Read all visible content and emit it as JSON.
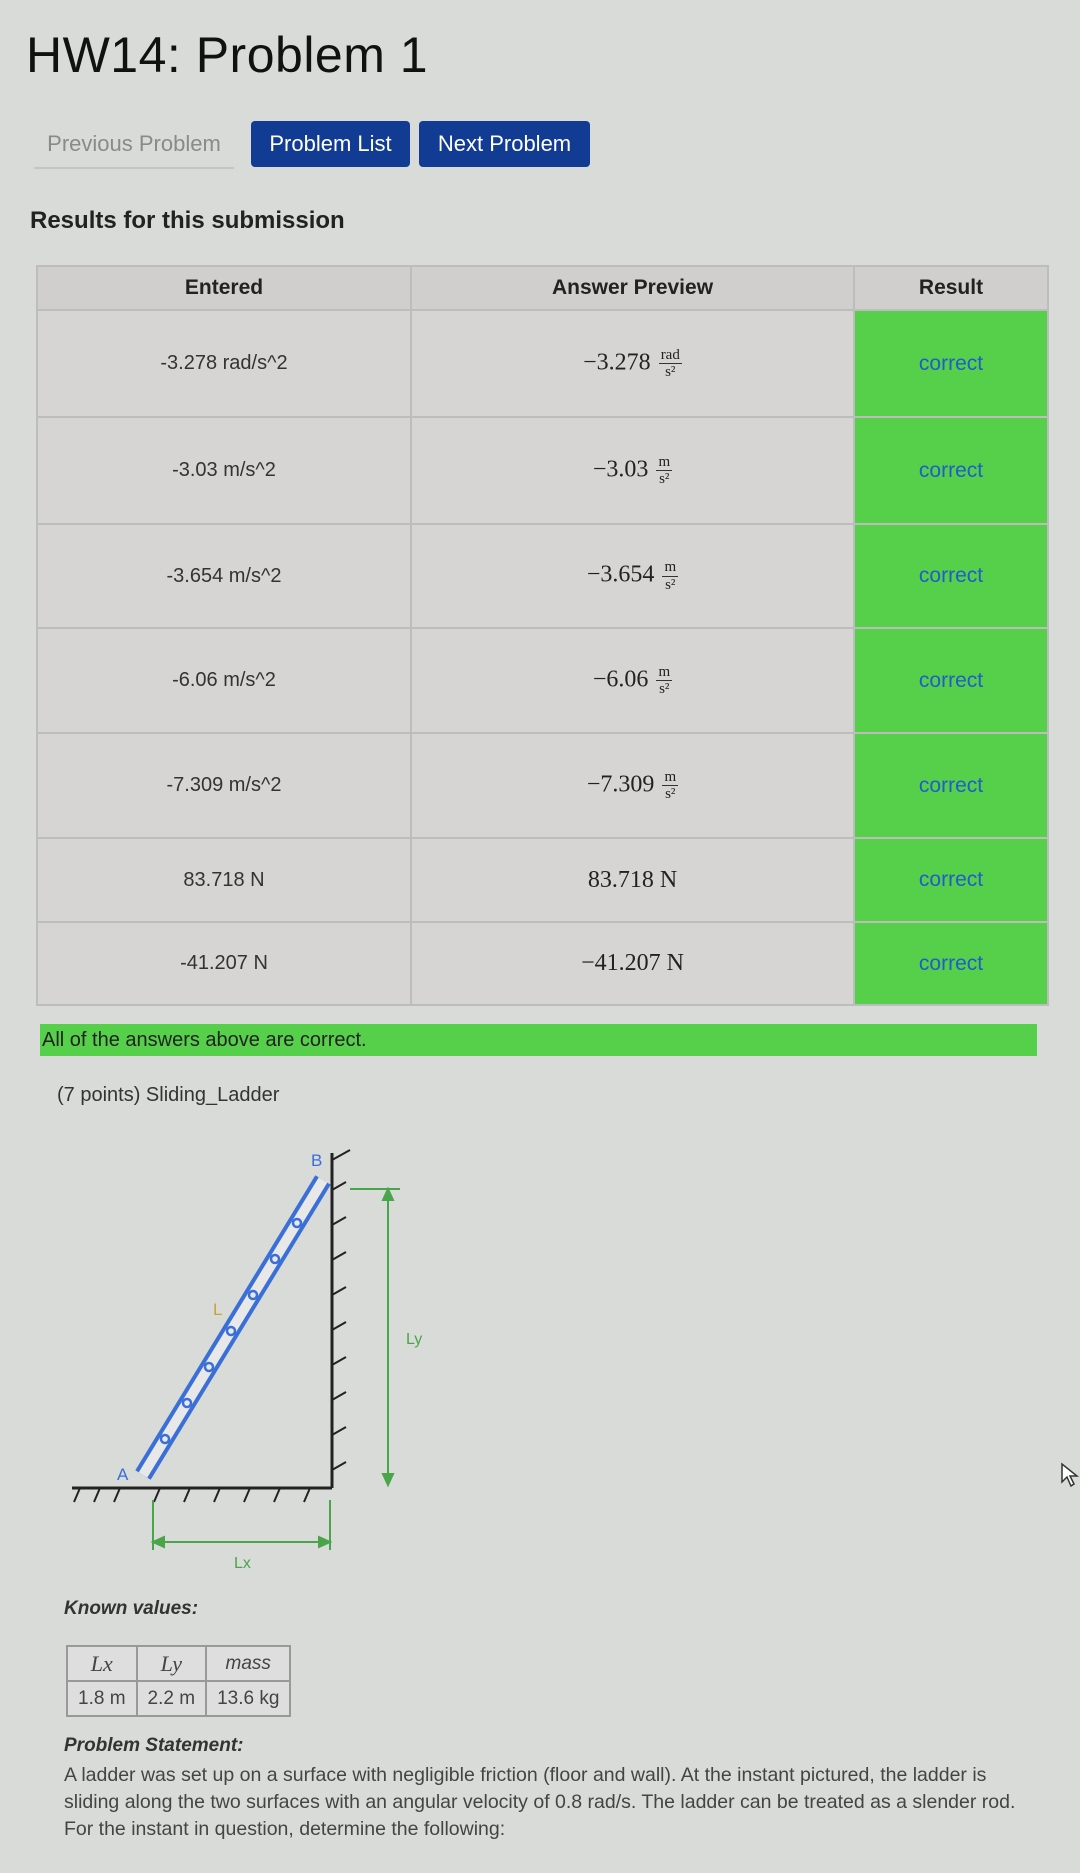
{
  "header": {
    "title": "HW14: Problem 1"
  },
  "nav": {
    "previous": "Previous Problem",
    "list": "Problem List",
    "next": "Next Problem"
  },
  "results": {
    "heading": "Results for this submission",
    "columns": [
      "Entered",
      "Answer Preview",
      "Result"
    ],
    "rows": [
      {
        "entered": "-3.278 rad/s^2",
        "preview_value": "−3.278",
        "unit_num": "rad",
        "unit_den": "s²",
        "result": "correct"
      },
      {
        "entered": "-3.03 m/s^2",
        "preview_value": "−3.03",
        "unit_num": "m",
        "unit_den": "s²",
        "result": "correct"
      },
      {
        "entered": "-3.654 m/s^2",
        "preview_value": "−3.654",
        "unit_num": "m",
        "unit_den": "s²",
        "result": "correct"
      },
      {
        "entered": "-6.06 m/s^2",
        "preview_value": "−6.06",
        "unit_num": "m",
        "unit_den": "s²",
        "result": "correct"
      },
      {
        "entered": "-7.309 m/s^2",
        "preview_value": "−7.309",
        "unit_num": "m",
        "unit_den": "s²",
        "result": "correct"
      },
      {
        "entered": "83.718 N",
        "preview_value": "83.718 N",
        "result": "correct"
      },
      {
        "entered": "-41.207 N",
        "preview_value": "−41.207 N",
        "result": "correct"
      }
    ],
    "summary": "All of the answers above are correct.",
    "colors": {
      "correct": "#56d04a",
      "button": "#123b94"
    }
  },
  "problem": {
    "points": "(7 points) Sliding_Ladder",
    "figure": {
      "A": "A",
      "B": "B",
      "L": "L",
      "Ly": "Ly",
      "Lx": "Lx"
    },
    "known_heading": "Known values:",
    "known": {
      "headers": [
        "Lx",
        "Ly",
        "mass"
      ],
      "values": [
        "1.8 m",
        "2.2 m",
        "13.6 kg"
      ]
    },
    "statement_heading": "Problem Statement:",
    "statement": "A ladder was set up on a surface with negligible friction (floor and wall). At the instant pictured, the ladder is sliding along the two surfaces with an angular velocity of 0.8 rad/s. The ladder can be treated as a slender rod. For the instant in question, determine the following:"
  },
  "icons": {
    "cursor": "mouse-pointer-icon"
  }
}
